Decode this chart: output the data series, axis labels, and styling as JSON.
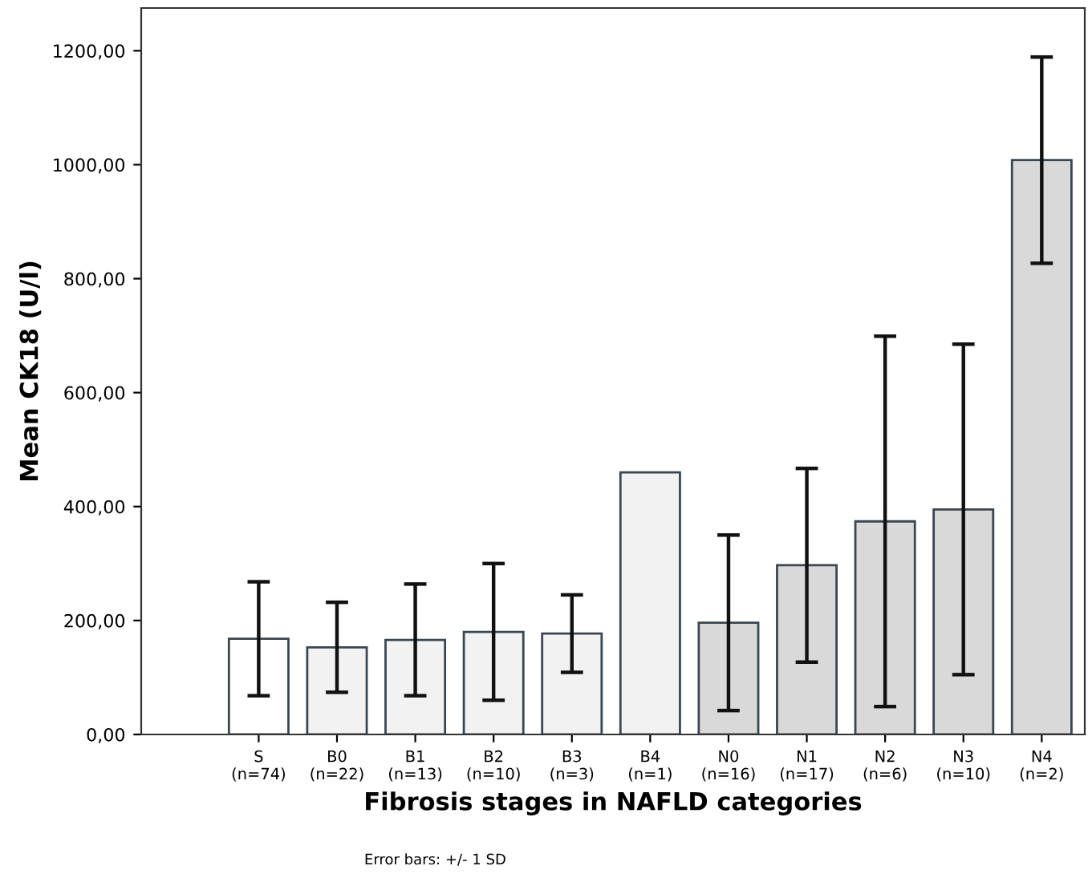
{
  "chart_data": {
    "type": "bar",
    "xlabel": "Fibrosis stages in NAFLD categories",
    "ylabel": "Mean CK18 (U/l)",
    "categories": [
      "S\n(n=74)",
      "B0\n(n=22)",
      "B1\n(n=13)",
      "B2\n(n=10)",
      "B3\n(n=3)",
      "B4\n(n=1)",
      "N0\n(n=16)",
      "N1\n(n=17)",
      "N2\n(n=6)",
      "N3\n(n=10)",
      "N4\n(n=2)"
    ],
    "values": [
      168,
      153,
      166,
      180,
      177,
      460,
      196,
      297,
      374,
      395,
      1008
    ],
    "errors": [
      100,
      79,
      98,
      120,
      68,
      null,
      154,
      170,
      325,
      290,
      181
    ],
    "colors": [
      "#ffffff",
      "#f2f2f2",
      "#f2f2f2",
      "#f2f2f2",
      "#f2f2f2",
      "#f2f2f2",
      "#d9d9d9",
      "#d9d9d9",
      "#d9d9d9",
      "#d9d9d9",
      "#d9d9d9"
    ],
    "ylim": [
      0,
      1275
    ],
    "yticks": [
      {
        "value": 0,
        "label": "0,00"
      },
      {
        "value": 200,
        "label": "200,00"
      },
      {
        "value": 400,
        "label": "400,00"
      },
      {
        "value": 600,
        "label": "600,00"
      },
      {
        "value": 800,
        "label": "800,00"
      },
      {
        "value": 1000,
        "label": "1000,00"
      },
      {
        "value": 1200,
        "label": "1200,00"
      }
    ],
    "grid": false,
    "annotations": [
      "Error bars: +/- 1 SD"
    ]
  }
}
